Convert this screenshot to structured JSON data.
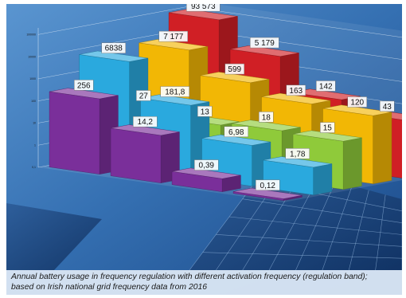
{
  "caption": {
    "line1": "Annual battery usage in frequency regulation with different activation frequency (regulation band);",
    "line2": "based on Irish national grid frequency data from 2016"
  },
  "colors": {
    "background": "#2f66a8",
    "series": [
      "#7a2f9a",
      "#2aa9de",
      "#8fca3a",
      "#f2b705",
      "#d01f25"
    ]
  },
  "chart_data": {
    "type": "bar",
    "style": "3d-clustered",
    "y_scale": "log",
    "yticks": [
      "100000",
      "10000",
      "1000",
      "100",
      "10",
      "1",
      "0,1"
    ],
    "categories": [
      "",
      "",
      "",
      ""
    ],
    "series": [
      {
        "color": "purple",
        "values": [
          256,
          14.2,
          0.39,
          0.12
        ],
        "labels": [
          "256",
          "14,2",
          "0,39",
          "0,12"
        ]
      },
      {
        "color": "blue",
        "values": [
          6838,
          181.8,
          6.98,
          1.78
        ],
        "labels": [
          "6838",
          "181,8",
          "6,98",
          "1,78"
        ]
      },
      {
        "color": "green",
        "values": [
          27,
          13,
          18,
          15
        ],
        "labels": [
          "27",
          "13",
          "18",
          "15"
        ]
      },
      {
        "color": "yellow",
        "values": [
          7177,
          599,
          163,
          120
        ],
        "labels": [
          "7 177",
          "599",
          "163",
          "120"
        ]
      },
      {
        "color": "red",
        "values": [
          93573,
          5179,
          142,
          43
        ],
        "labels": [
          "93 573",
          "5 179",
          "142",
          "43"
        ]
      }
    ]
  }
}
